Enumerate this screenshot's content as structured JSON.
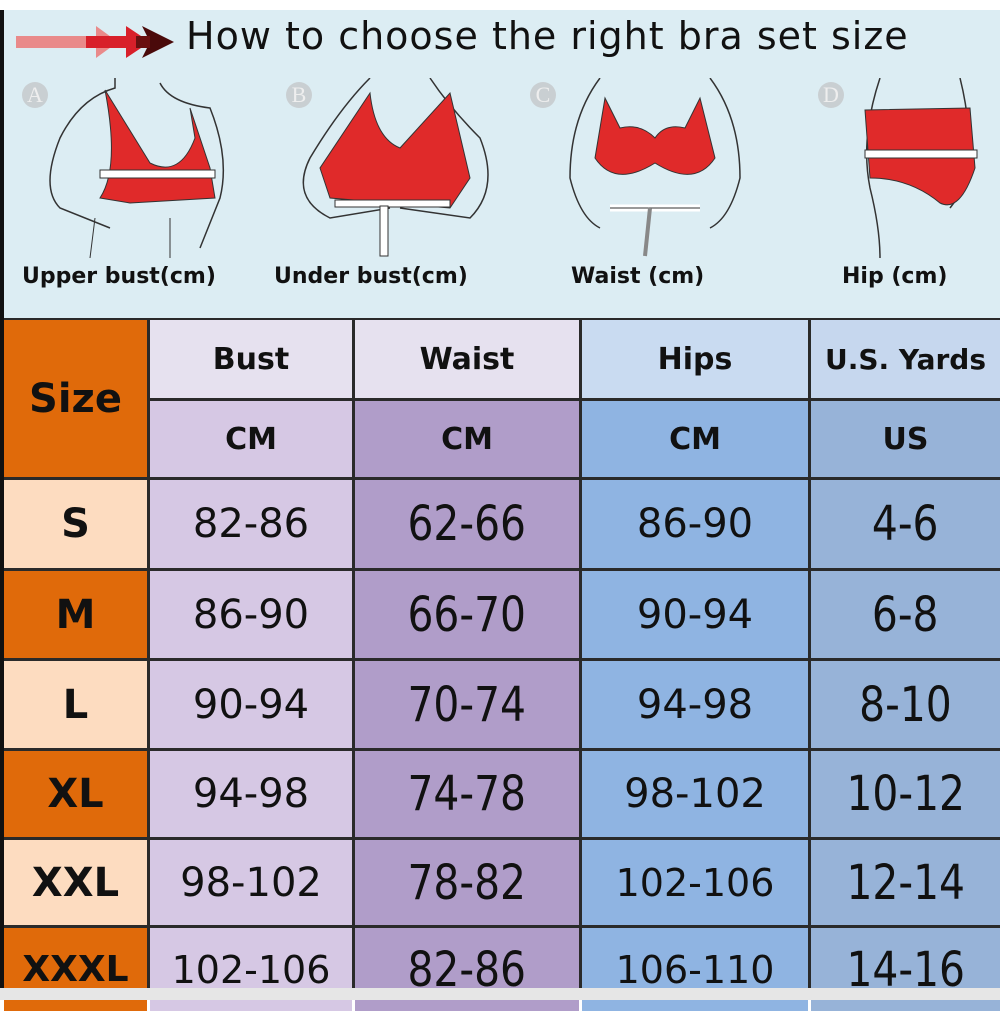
{
  "title": "How to choose the right bra set size",
  "colors": {
    "arrow_light": "#e98a8a",
    "arrow_mid": "#d8202a",
    "arrow_dark": "#4a0a0a",
    "bra_red": "#e02a2a",
    "background": "#dcedf3",
    "size_orange": "#e06a0a",
    "size_light": "#fddcc0",
    "bust_cell": "#d6c8e4",
    "waist_cell": "#b09dc9",
    "hips_cell": "#8fb4e2",
    "us_cell": "#97b3d8"
  },
  "figures": [
    {
      "letter": "A",
      "caption": "Upper bust(cm)"
    },
    {
      "letter": "B",
      "caption": "Under bust(cm)"
    },
    {
      "letter": "C",
      "caption": "Waist (cm)"
    },
    {
      "letter": "D",
      "caption": "Hip (cm)"
    }
  ],
  "table": {
    "size_header": "Size",
    "columns": [
      {
        "name": "Bust",
        "unit": "CM"
      },
      {
        "name": "Waist",
        "unit": "CM"
      },
      {
        "name": "Hips",
        "unit": "CM"
      },
      {
        "name": "U.S. Yards",
        "unit": "US"
      }
    ],
    "rows": [
      {
        "size": "S",
        "values": [
          "82-86",
          "62-66",
          "86-90",
          "4-6"
        ]
      },
      {
        "size": "M",
        "values": [
          "86-90",
          "66-70",
          "90-94",
          "6-8"
        ]
      },
      {
        "size": "L",
        "values": [
          "90-94",
          "70-74",
          "94-98",
          "8-10"
        ]
      },
      {
        "size": "XL",
        "values": [
          "94-98",
          "74-78",
          "98-102",
          "10-12"
        ]
      },
      {
        "size": "XXL",
        "values": [
          "98-102",
          "78-82",
          "102-106",
          "12-14"
        ]
      },
      {
        "size": "XXXL",
        "values": [
          "102-106",
          "82-86",
          "106-110",
          "14-16"
        ]
      }
    ]
  }
}
